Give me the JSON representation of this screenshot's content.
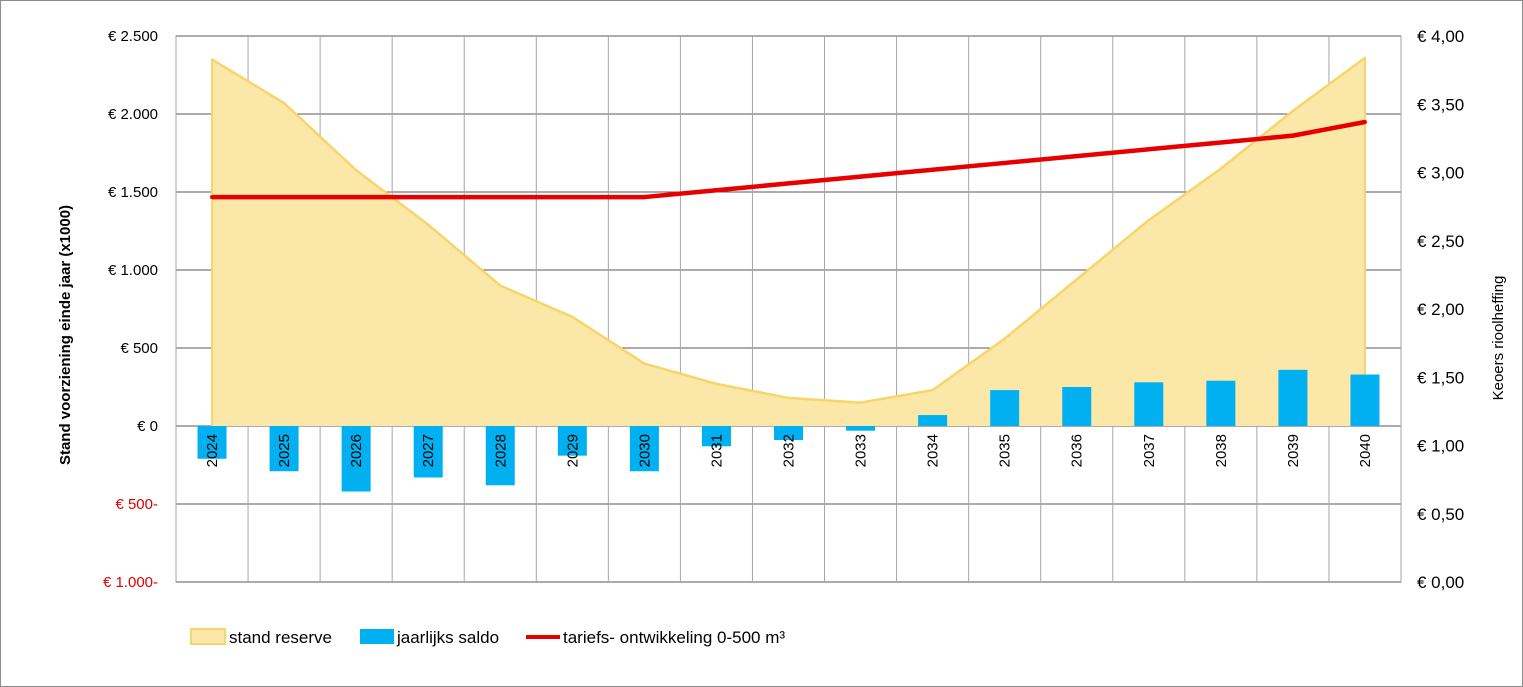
{
  "chart_data": {
    "type": "bar",
    "categories": [
      "2024",
      "2025",
      "2026",
      "2027",
      "2028",
      "2029",
      "2030",
      "2031",
      "2032",
      "2033",
      "2034",
      "2035",
      "2036",
      "2037",
      "2038",
      "2039",
      "2040"
    ],
    "series": [
      {
        "name": "stand reserve",
        "render": "area",
        "axis": "left",
        "color": "#fbe7a8",
        "stroke": "#f7d56a",
        "values": [
          2350,
          2070,
          1640,
          1290,
          900,
          700,
          400,
          270,
          180,
          150,
          230,
          560,
          940,
          1320,
          1650,
          2020,
          2360
        ]
      },
      {
        "name": "jaarlijks saldo",
        "render": "bar",
        "axis": "left",
        "color": "#00b0f0",
        "values": [
          -210,
          -290,
          -420,
          -330,
          -380,
          -190,
          -290,
          -130,
          -90,
          -30,
          70,
          230,
          250,
          280,
          290,
          360,
          330
        ]
      },
      {
        "name": "tariefs- ontwikkeling 0-500 m³",
        "render": "line",
        "axis": "right",
        "color": "#e80000",
        "values": [
          2.82,
          2.82,
          2.82,
          2.82,
          2.82,
          2.82,
          2.82,
          2.87,
          2.92,
          2.97,
          3.02,
          3.07,
          3.12,
          3.17,
          3.22,
          3.27,
          3.37
        ]
      }
    ],
    "y_left": {
      "label": "Stand voorziening einde jaar (x1000)",
      "lim": [
        -1000,
        2500
      ],
      "ticks": [
        2500,
        2000,
        1500,
        1000,
        500,
        0,
        -500,
        -1000
      ],
      "tick_labels": [
        "€ 2.500",
        "€ 2.000",
        "€ 1.500",
        "€ 1.000",
        "€ 500",
        "€ 0",
        "€ 500-",
        "€ 1.000-"
      ],
      "negative_color": "#e00000"
    },
    "y_right": {
      "label": "Keoers rioolheffing",
      "lim": [
        0,
        4
      ],
      "ticks": [
        4,
        3.5,
        3,
        2.5,
        2,
        1.5,
        1,
        0.5,
        0
      ],
      "tick_labels": [
        "€ 4,00",
        "€ 3,50",
        "€ 3,00",
        "€ 2,50",
        "€ 2,00",
        "€ 1,50",
        "€ 1,00",
        "€ 0,50",
        "€ 0,00"
      ]
    },
    "grid": true,
    "legend_position": "bottom-left"
  }
}
